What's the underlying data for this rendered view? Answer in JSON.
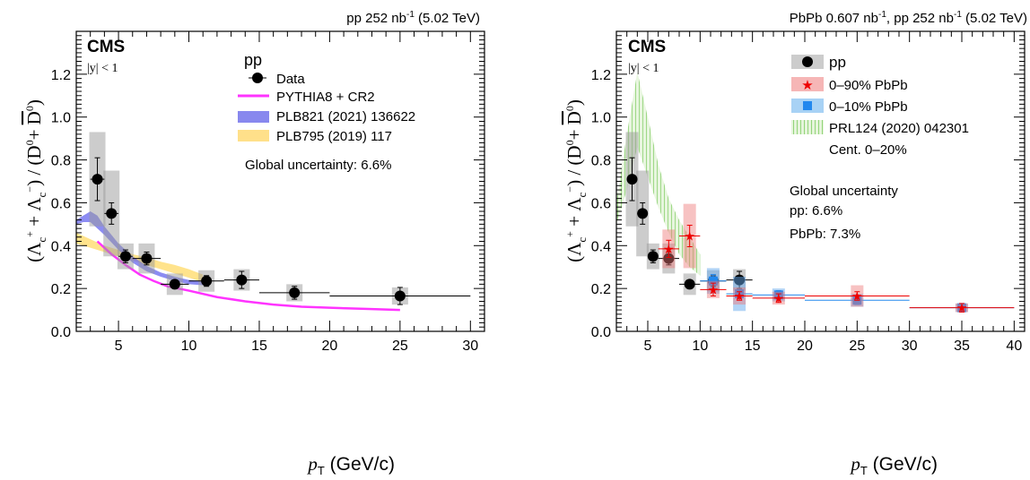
{
  "chart_data": [
    {
      "type": "scatter",
      "panel": "left",
      "header": "pp 252 nb",
      "header_sup": "-1",
      "header_tail": " (5.02 TeV)",
      "experiment": "CMS",
      "rapidity": "|y| < 1",
      "xlabel": "p",
      "xlabel_sub": "T",
      "xlabel_unit": " (GeV/c)",
      "ylabel": "(Λc+ + Λc−) / (D0 + D0bar)",
      "xlim": [
        2,
        31
      ],
      "ylim": [
        0,
        1.4
      ],
      "xticks": [
        "5",
        "10",
        "15",
        "20",
        "25",
        "30"
      ],
      "yticks": [
        "0.0",
        "0.2",
        "0.4",
        "0.6",
        "0.8",
        "1.0",
        "1.2"
      ],
      "legend_title": "pp",
      "legend": [
        "Data",
        "PYTHIA8 + CR2",
        "PLB821 (2021) 136622",
        "PLB795 (2019) 117"
      ],
      "annotation": "Global uncertainty: 6.6%",
      "series": [
        {
          "name": "Data",
          "color": "#000000",
          "points": [
            {
              "x": 3.5,
              "xlo": 3.0,
              "xhi": 4.0,
              "y": 0.71,
              "stat": 0.1,
              "syst": 0.22
            },
            {
              "x": 4.5,
              "xlo": 4.0,
              "xhi": 5.0,
              "y": 0.55,
              "stat": 0.05,
              "syst": 0.2
            },
            {
              "x": 5.5,
              "xlo": 5.0,
              "xhi": 6.0,
              "y": 0.35,
              "stat": 0.03,
              "syst": 0.06
            },
            {
              "x": 7.0,
              "xlo": 6.0,
              "xhi": 8.0,
              "y": 0.34,
              "stat": 0.03,
              "syst": 0.07
            },
            {
              "x": 9.0,
              "xlo": 8.0,
              "xhi": 10.0,
              "y": 0.22,
              "stat": 0.02,
              "syst": 0.05
            },
            {
              "x": 11.25,
              "xlo": 10.0,
              "xhi": 12.5,
              "y": 0.235,
              "stat": 0.025,
              "syst": 0.05
            },
            {
              "x": 13.75,
              "xlo": 12.5,
              "xhi": 15.0,
              "y": 0.24,
              "stat": 0.04,
              "syst": 0.05
            },
            {
              "x": 17.5,
              "xlo": 15.0,
              "xhi": 20.0,
              "y": 0.18,
              "stat": 0.03,
              "syst": 0.04
            },
            {
              "x": 25.0,
              "xlo": 20.0,
              "xhi": 30.0,
              "y": 0.165,
              "stat": 0.04,
              "syst": 0.04
            }
          ]
        },
        {
          "name": "PYTHIA8 + CR2",
          "color": "#ff33ff",
          "x": [
            3.5,
            4.5,
            5.5,
            6.5,
            7.5,
            8.5,
            10,
            12,
            14,
            16,
            18,
            20,
            22.5,
            25
          ],
          "y": [
            0.42,
            0.36,
            0.31,
            0.265,
            0.235,
            0.21,
            0.19,
            0.16,
            0.14,
            0.125,
            0.115,
            0.11,
            0.105,
            0.1
          ]
        },
        {
          "name": "PLB821 (2021) 136622",
          "color": "#6666ee",
          "x": [
            2.0,
            2.5,
            3.0,
            3.5,
            4.0,
            5.0,
            6.0,
            7.0,
            8.0,
            9.0,
            10.0,
            11.0
          ],
          "lo": [
            0.5,
            0.51,
            0.51,
            0.48,
            0.45,
            0.38,
            0.32,
            0.28,
            0.255,
            0.235,
            0.22,
            0.215
          ],
          "hi": [
            0.52,
            0.54,
            0.56,
            0.54,
            0.49,
            0.41,
            0.35,
            0.305,
            0.275,
            0.255,
            0.24,
            0.235
          ]
        },
        {
          "name": "PLB795 (2019) 117",
          "color": "#ffd966",
          "x": [
            2.0,
            3.0,
            4.0,
            5.0,
            6.0,
            7.0,
            8.0,
            9.0,
            10.0,
            11.0
          ],
          "lo": [
            0.41,
            0.39,
            0.37,
            0.35,
            0.33,
            0.31,
            0.29,
            0.27,
            0.25,
            0.23
          ],
          "hi": [
            0.46,
            0.43,
            0.4,
            0.38,
            0.36,
            0.345,
            0.325,
            0.31,
            0.29,
            0.265
          ]
        }
      ]
    },
    {
      "type": "scatter",
      "panel": "right",
      "header": "PbPb 0.607 nb",
      "header_sup": "-1",
      "header_mid": ", pp 252 nb",
      "header_sup2": "-1",
      "header_tail": " (5.02 TeV)",
      "experiment": "CMS",
      "rapidity": "|y| < 1",
      "xlabel": "p",
      "xlabel_sub": "T",
      "xlabel_unit": " (GeV/c)",
      "ylabel": "(Λc+ + Λc−) / (D0 + D0bar)",
      "xlim": [
        2,
        41
      ],
      "ylim": [
        0,
        1.4
      ],
      "xticks": [
        "5",
        "10",
        "15",
        "20",
        "25",
        "30",
        "35",
        "40"
      ],
      "yticks": [
        "0.0",
        "0.2",
        "0.4",
        "0.6",
        "0.8",
        "1.0",
        "1.2"
      ],
      "legend": [
        "pp",
        "0–90% PbPb",
        "0–10% PbPb",
        "PRL124 (2020) 042301",
        "Cent. 0–20%"
      ],
      "annotation_lines": [
        "Global uncertainty",
        "pp: 6.6%",
        "PbPb: 7.3%"
      ],
      "series": [
        {
          "name": "pp",
          "color": "#000000",
          "points": [
            {
              "x": 3.5,
              "xlo": 3.0,
              "xhi": 4.0,
              "y": 0.71,
              "stat": 0.1,
              "syst": 0.22
            },
            {
              "x": 4.5,
              "xlo": 4.0,
              "xhi": 5.0,
              "y": 0.55,
              "stat": 0.05,
              "syst": 0.2
            },
            {
              "x": 5.5,
              "xlo": 5.0,
              "xhi": 6.0,
              "y": 0.35,
              "stat": 0.03,
              "syst": 0.06
            },
            {
              "x": 7.0,
              "xlo": 6.0,
              "xhi": 8.0,
              "y": 0.34,
              "stat": 0.03,
              "syst": 0.07
            },
            {
              "x": 9.0,
              "xlo": 8.0,
              "xhi": 10.0,
              "y": 0.22,
              "stat": 0.02,
              "syst": 0.05
            },
            {
              "x": 11.25,
              "xlo": 10.0,
              "xhi": 12.5,
              "y": 0.235,
              "stat": 0.025,
              "syst": 0.05
            },
            {
              "x": 13.75,
              "xlo": 12.5,
              "xhi": 15.0,
              "y": 0.24,
              "stat": 0.04,
              "syst": 0.05
            }
          ]
        },
        {
          "name": "0–90% PbPb",
          "color": "#ee0000",
          "points": [
            {
              "x": 7.0,
              "xlo": 6.0,
              "xhi": 8.0,
              "y": 0.385,
              "stat": 0.04,
              "syst": 0.09
            },
            {
              "x": 9.0,
              "xlo": 8.0,
              "xhi": 10.0,
              "y": 0.445,
              "stat": 0.05,
              "syst": 0.15
            },
            {
              "x": 11.25,
              "xlo": 10.0,
              "xhi": 12.5,
              "y": 0.195,
              "stat": 0.03,
              "syst": 0.04
            },
            {
              "x": 13.75,
              "xlo": 12.5,
              "xhi": 15.0,
              "y": 0.165,
              "stat": 0.02,
              "syst": 0.04
            },
            {
              "x": 17.5,
              "xlo": 15.0,
              "xhi": 20.0,
              "y": 0.155,
              "stat": 0.02,
              "syst": 0.03
            },
            {
              "x": 25.0,
              "xlo": 20.0,
              "xhi": 30.0,
              "y": 0.165,
              "stat": 0.02,
              "syst": 0.05
            },
            {
              "x": 35.0,
              "xlo": 30.0,
              "xhi": 40.0,
              "y": 0.11,
              "stat": 0.02,
              "syst": 0.02
            }
          ]
        },
        {
          "name": "0–10% PbPb",
          "color": "#2288ee",
          "points": [
            {
              "x": 11.25,
              "xlo": 10.0,
              "xhi": 12.5,
              "y": 0.235,
              "stat": 0.03,
              "syst": 0.06
            },
            {
              "x": 13.75,
              "xlo": 12.5,
              "xhi": 15.0,
              "y": 0.175,
              "stat": 0.02,
              "syst": 0.08
            },
            {
              "x": 17.5,
              "xlo": 15.0,
              "xhi": 20.0,
              "y": 0.17,
              "stat": 0.02,
              "syst": 0.03
            },
            {
              "x": 25.0,
              "xlo": 20.0,
              "xhi": 30.0,
              "y": 0.145,
              "stat": 0.02,
              "syst": 0.03
            },
            {
              "x": 35.0,
              "xlo": 30.0,
              "xhi": 40.0,
              "y": 0.11,
              "stat": 0.02,
              "syst": 0.02
            }
          ]
        },
        {
          "name": "PRL124 (2020) 042301",
          "color": "#99d977",
          "x": [
            2.0,
            3.0,
            4.0,
            5.0,
            6.0,
            7.0,
            8.0,
            9.0,
            10.0
          ],
          "lo": [
            0.5,
            0.66,
            0.86,
            0.72,
            0.58,
            0.46,
            0.36,
            0.3,
            0.26
          ],
          "hi": [
            0.6,
            0.92,
            1.21,
            1.0,
            0.78,
            0.62,
            0.52,
            0.44,
            0.36
          ]
        }
      ]
    }
  ]
}
